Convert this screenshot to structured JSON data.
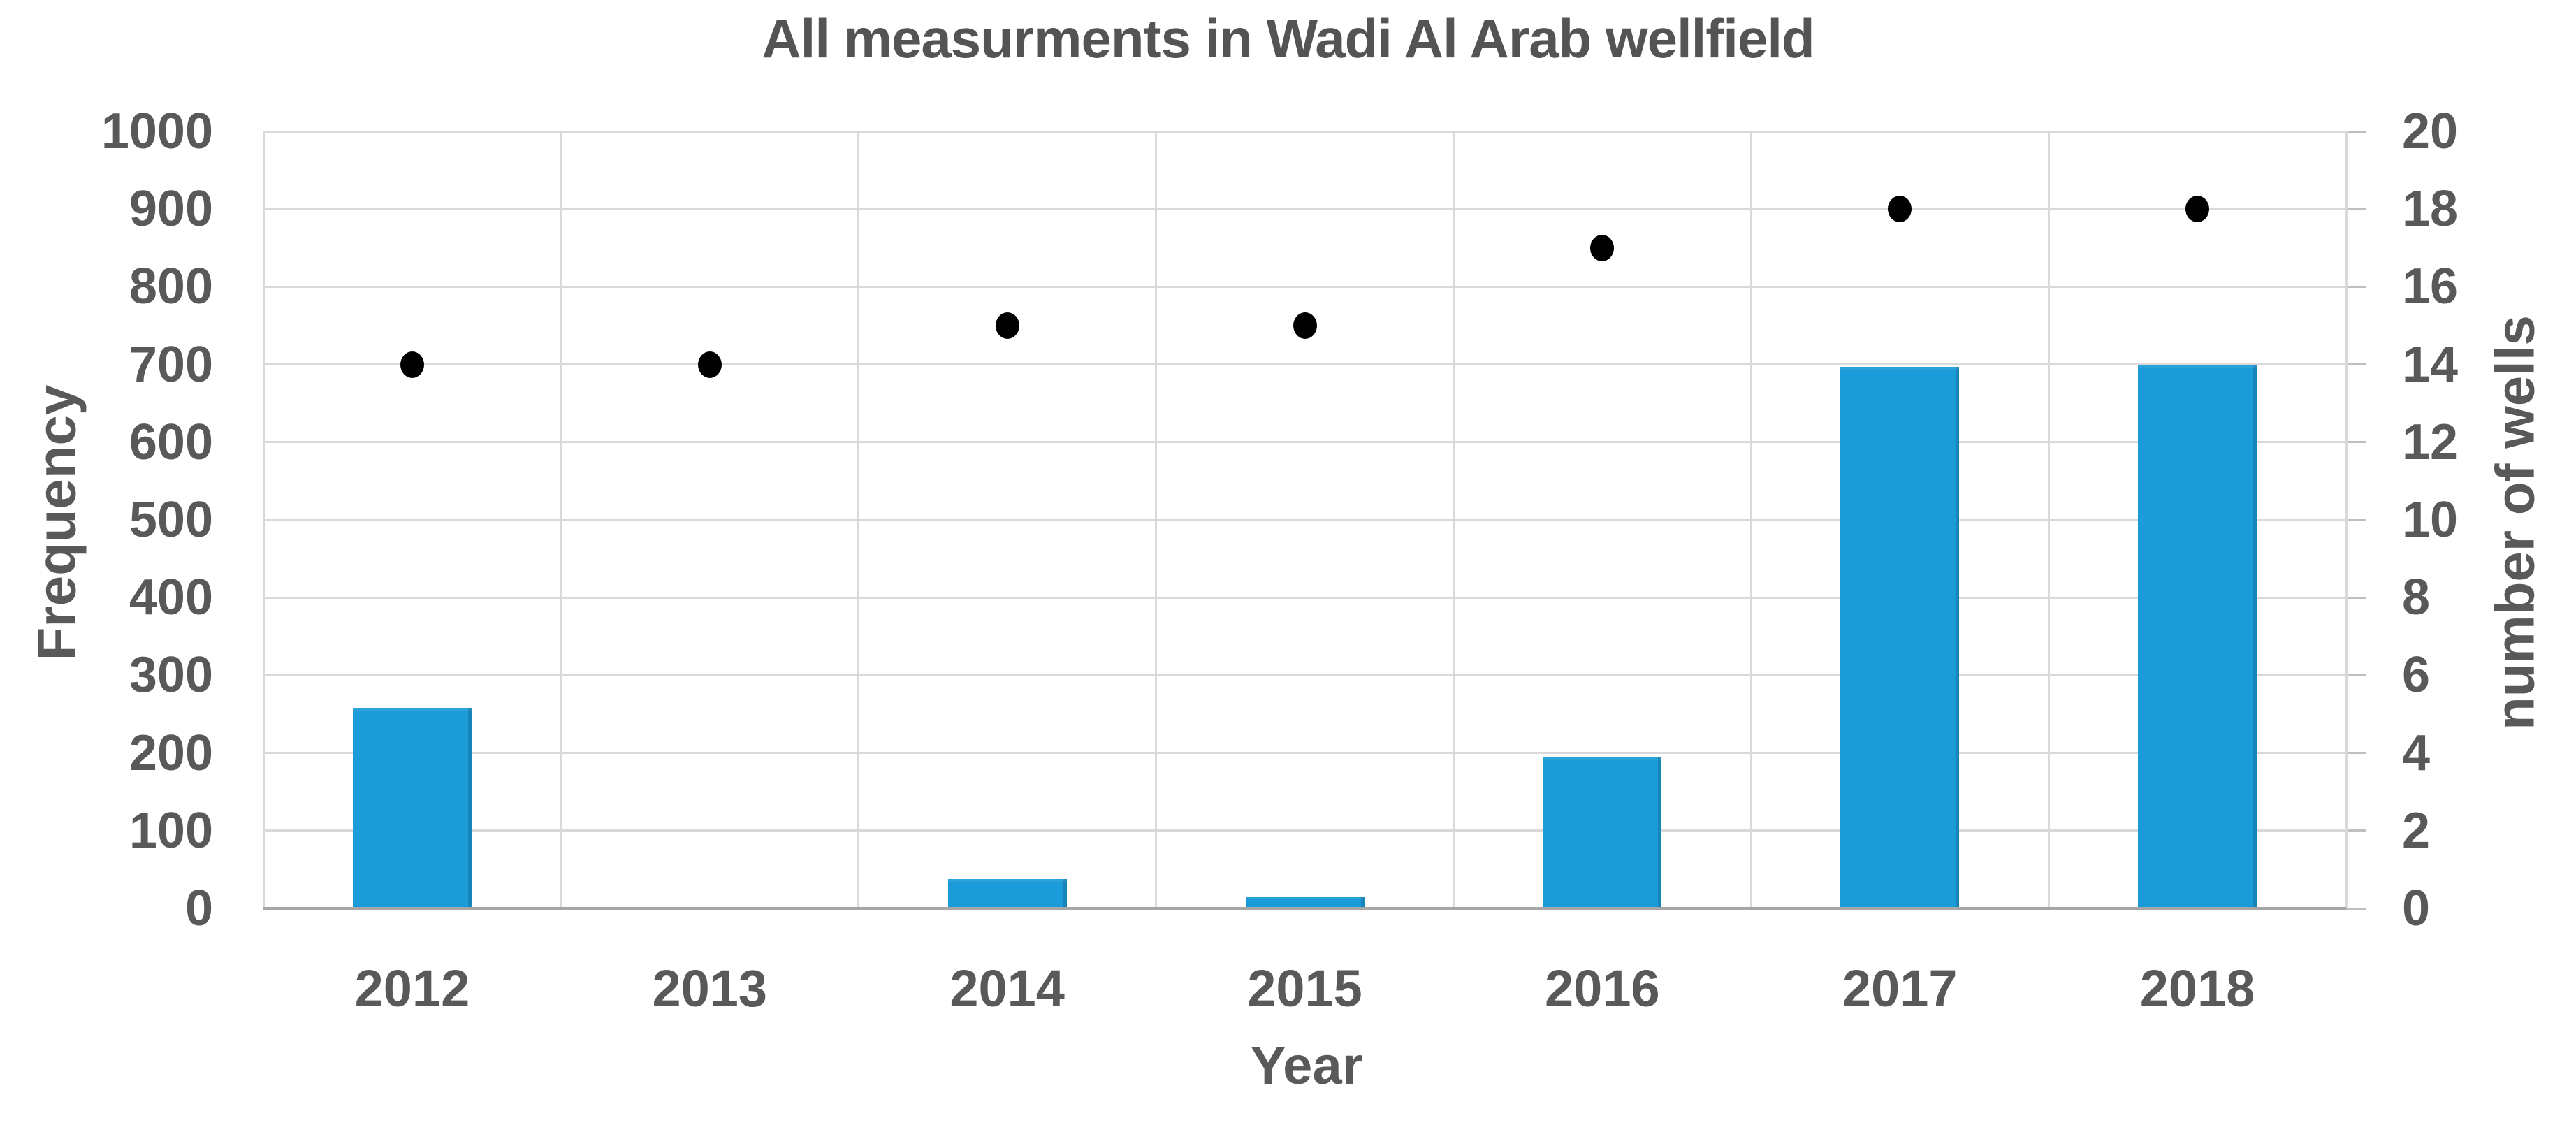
{
  "chart_title": "All measurments in Wadi Al Arab wellfield",
  "colors": {
    "bar": "#1b9bd8",
    "dot": "#000000",
    "text": "#595959",
    "title_text": "#545454",
    "gridline": "#d9d9d9",
    "axis_line": "#a6a6a6",
    "tick_mark": "#bfbfbf",
    "background": "#ffffff"
  },
  "chart_data": {
    "type": "bar",
    "title": "All measurments in Wadi Al Arab wellfield",
    "xlabel": "Year",
    "ylabel": "Frequency",
    "y2label": "number of wells",
    "categories": [
      "2012",
      "2013",
      "2014",
      "2015",
      "2016",
      "2017",
      "2018"
    ],
    "series": [
      {
        "name": "Frequency",
        "type": "bar",
        "axis": "left",
        "values": [
          258,
          0,
          38,
          15,
          195,
          697,
          700
        ]
      },
      {
        "name": "number of wells",
        "type": "scatter",
        "axis": "right",
        "values": [
          14,
          14,
          15,
          15,
          17,
          18,
          18
        ]
      }
    ],
    "ylim": [
      0,
      1000
    ],
    "ytick_step": 100,
    "yticks": [
      0,
      100,
      200,
      300,
      400,
      500,
      600,
      700,
      800,
      900,
      1000
    ],
    "y2lim": [
      0,
      20
    ],
    "y2tick_step": 2,
    "y2ticks": [
      0,
      2,
      4,
      6,
      8,
      10,
      12,
      14,
      16,
      18,
      20
    ],
    "grid": true,
    "legend_position": "none"
  }
}
